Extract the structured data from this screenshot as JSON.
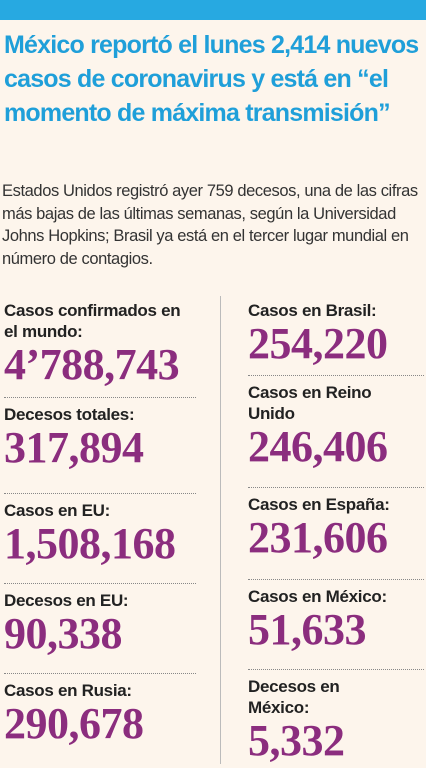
{
  "header": {
    "title": "México reportó el lunes 2,414 nuevos casos de coronavirus y está en “el momento de máxima transmisión”",
    "subtitle": "Estados Unidos registró ayer 759 decesos, una de las cifras más bajas de las últimas semanas, según la Universidad Johns Hopkins; Brasil ya está en el tercer lugar mundial en número de contagios."
  },
  "stats": {
    "left": [
      {
        "label": "Casos confirmados en el mundo:",
        "value": "4’788,743"
      },
      {
        "label": "Decesos totales:",
        "value": "317,894"
      },
      {
        "label": "Casos en EU:",
        "value": "1,508,168"
      },
      {
        "label": "Decesos en EU:",
        "value": "90,338"
      },
      {
        "label": "Casos en Rusia:",
        "value": "290,678"
      }
    ],
    "right": [
      {
        "label": "Casos en Brasil:",
        "value": "254,220"
      },
      {
        "label": "Casos en Reino Unido",
        "value": "246,406"
      },
      {
        "label": "Casos en España:",
        "value": "231,606"
      },
      {
        "label": "Casos en México:",
        "value": "51,633"
      },
      {
        "label": "Decesos en México:",
        "value": "5,332"
      }
    ]
  }
}
